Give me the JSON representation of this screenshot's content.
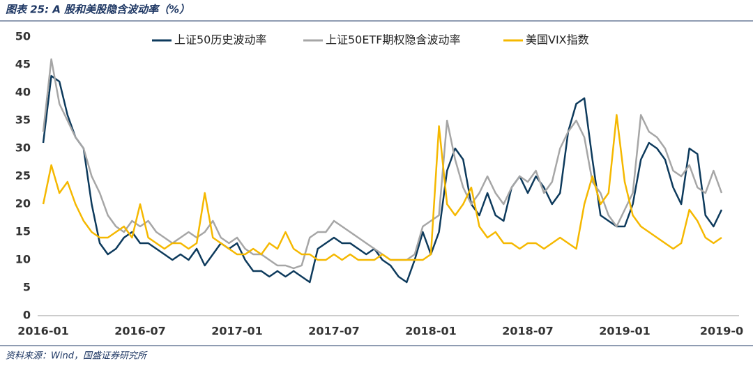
{
  "chart_data": {
    "type": "line",
    "title": "图表 25: A 股和美股隐含波动率（%）",
    "source": "资料来源：Wind，国盛证券研究所",
    "categories": [
      "2016-01",
      null,
      null,
      null,
      null,
      null,
      null,
      null,
      null,
      null,
      null,
      null,
      "2016-07",
      null,
      null,
      null,
      null,
      null,
      null,
      null,
      null,
      null,
      null,
      null,
      "2017-01",
      null,
      null,
      null,
      null,
      null,
      null,
      null,
      null,
      null,
      null,
      null,
      "2017-07",
      null,
      null,
      null,
      null,
      null,
      null,
      null,
      null,
      null,
      null,
      null,
      "2018-01",
      null,
      null,
      null,
      null,
      null,
      null,
      null,
      null,
      null,
      null,
      null,
      "2018-07",
      null,
      null,
      null,
      null,
      null,
      null,
      null,
      null,
      null,
      null,
      null,
      "2019-01",
      null,
      null,
      null,
      null,
      null,
      null,
      null,
      null,
      null,
      null,
      null,
      "2019-0"
    ],
    "series": [
      {
        "name": "上证50历史波动率",
        "color": "#0d3a5c",
        "values": [
          31,
          43,
          42,
          36,
          32,
          30,
          20,
          13,
          11,
          12,
          14,
          15,
          13,
          13,
          12,
          11,
          10,
          11,
          10,
          12,
          9,
          11,
          13,
          12,
          13,
          10,
          8,
          8,
          7,
          8,
          7,
          8,
          7,
          6,
          12,
          13,
          14,
          13,
          13,
          12,
          11,
          12,
          10,
          9,
          7,
          6,
          10,
          15,
          11,
          15,
          26,
          30,
          28,
          20,
          18,
          22,
          18,
          17,
          23,
          25,
          22,
          25,
          23,
          20,
          22,
          33,
          38,
          39,
          28,
          18,
          17,
          16,
          16,
          20,
          28,
          31,
          30,
          28,
          23,
          20,
          30,
          29,
          18,
          16,
          19
        ]
      },
      {
        "name": "上证50ETF期权隐含波动率",
        "color": "#a6a6a6",
        "values": [
          33,
          46,
          38,
          35,
          32,
          30,
          25,
          22,
          18,
          16,
          15,
          17,
          16,
          17,
          15,
          14,
          13,
          14,
          15,
          14,
          15,
          17,
          14,
          13,
          14,
          12,
          11,
          11,
          10,
          9,
          9,
          8.5,
          9,
          14,
          15,
          15,
          17,
          16,
          15,
          14,
          13,
          12,
          11,
          10,
          10,
          10,
          11,
          16,
          17,
          18,
          35,
          28,
          23,
          20,
          22,
          25,
          22,
          20,
          23,
          25,
          24,
          26,
          22,
          24,
          30,
          33,
          35,
          32,
          24,
          22,
          18,
          16,
          19,
          22,
          36,
          33,
          32,
          30,
          26,
          25,
          27,
          23,
          22,
          26,
          22
        ]
      },
      {
        "name": "美国VIX指数",
        "color": "#f5b800",
        "values": [
          20,
          27,
          22,
          24,
          20,
          17,
          15,
          14,
          14,
          15,
          16,
          14,
          20,
          14,
          13,
          12,
          13,
          13,
          12,
          13,
          22,
          14,
          13,
          12,
          11,
          11,
          12,
          11,
          13,
          12,
          15,
          12,
          11,
          11,
          10,
          10,
          11,
          10,
          11,
          10,
          10,
          10,
          11,
          10,
          10,
          10,
          10,
          10,
          11,
          34,
          20,
          18,
          20,
          23,
          16,
          14,
          15,
          13,
          13,
          12,
          13,
          13,
          12,
          13,
          14,
          13,
          12,
          20,
          25,
          20,
          22,
          36,
          24,
          18,
          16,
          15,
          14,
          13,
          12,
          13,
          19,
          17,
          14,
          13,
          14
        ]
      }
    ],
    "ylim": [
      0,
      50
    ],
    "yticks": [
      0,
      5,
      10,
      15,
      20,
      25,
      30,
      35,
      40,
      45,
      50
    ],
    "grid": false,
    "legend": "top"
  }
}
